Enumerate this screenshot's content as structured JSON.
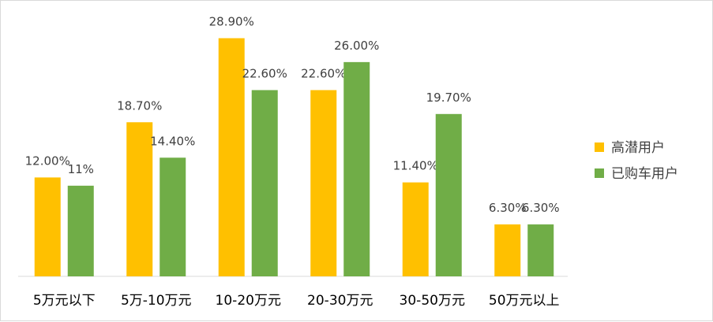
{
  "chart_data": {
    "type": "bar",
    "categories": [
      "5万元以下",
      "5万-10万元",
      "10-20万元",
      "20-30万元",
      "30-50万元",
      "50万元以上"
    ],
    "series": [
      {
        "name": "高潜用户",
        "color": "#FFC000",
        "values": [
          12.0,
          18.7,
          28.9,
          22.6,
          11.4,
          6.3
        ],
        "labels": [
          "12.00%",
          "18.70%",
          "28.90%",
          "22.60%",
          "11.40%",
          "6.30%"
        ]
      },
      {
        "name": "已购车用户",
        "color": "#70AD47",
        "values": [
          11.0,
          14.4,
          22.6,
          26.0,
          19.7,
          6.3
        ],
        "labels": [
          "11%",
          "14.40%",
          "22.60%",
          "26.00%",
          "19.70%",
          "6.30%"
        ]
      }
    ],
    "ylim": [
      0,
      30
    ],
    "grid": false,
    "legend_position": "right"
  }
}
